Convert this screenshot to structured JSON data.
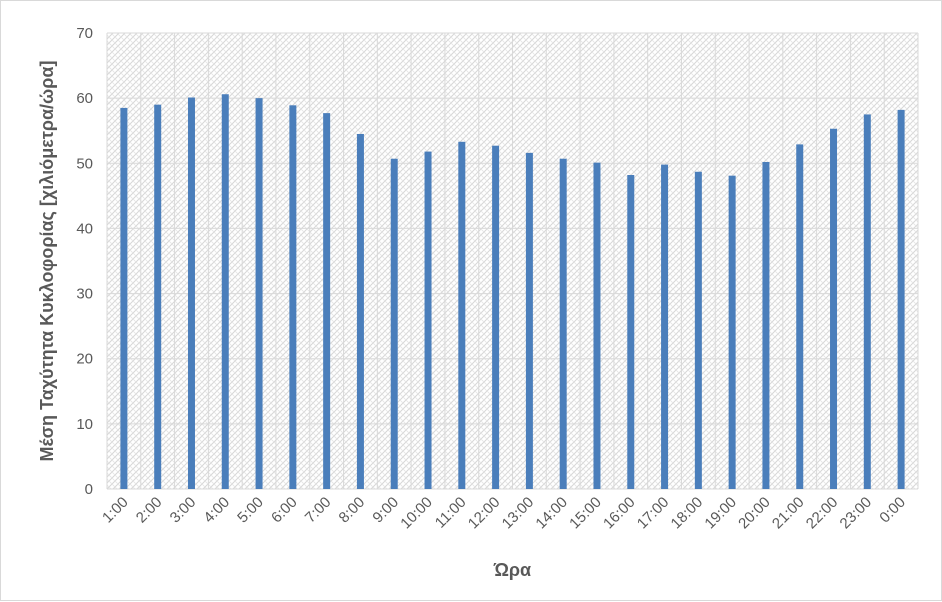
{
  "chart_data": {
    "type": "bar",
    "title": "",
    "xlabel": "Ώρα",
    "ylabel": "Μέση Ταχύτητα Κυκλοφορίας [χιλιόμετρα/ώρα]",
    "categories": [
      "1:00",
      "2:00",
      "3:00",
      "4:00",
      "5:00",
      "6:00",
      "7:00",
      "8:00",
      "9:00",
      "10:00",
      "11:00",
      "12:00",
      "13:00",
      "14:00",
      "15:00",
      "16:00",
      "17:00",
      "18:00",
      "19:00",
      "20:00",
      "21:00",
      "22:00",
      "23:00",
      "0:00"
    ],
    "values": [
      58.5,
      59.0,
      60.1,
      60.6,
      60.0,
      58.9,
      57.7,
      54.5,
      50.7,
      51.8,
      53.3,
      52.7,
      51.6,
      50.7,
      50.1,
      48.2,
      49.8,
      48.7,
      48.1,
      50.2,
      52.9,
      55.3,
      57.5,
      58.2
    ],
    "ylim": [
      0,
      70
    ],
    "yticks": [
      0,
      10,
      20,
      30,
      40,
      50,
      60,
      70
    ],
    "grid": true,
    "legend": "none",
    "colors": {
      "bar": "#4a7ebb",
      "grid": "#d9d9d9",
      "plot_background_pattern": "#d0d0d0",
      "text": "#595959"
    }
  }
}
